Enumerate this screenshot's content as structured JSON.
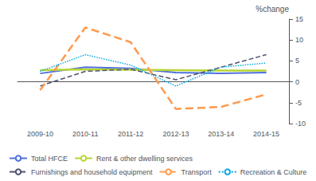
{
  "chart_data": {
    "type": "line",
    "categories": [
      "2009-10",
      "2010-11",
      "2011-12",
      "2012-13",
      "2013-14",
      "2014-15"
    ],
    "series": [
      {
        "name": "Total HFCE",
        "values": [
          2.0,
          3.5,
          3.2,
          2.2,
          2.0,
          2.2
        ],
        "line_style": "solid"
      },
      {
        "name": "Rent & other dwelling services",
        "values": [
          2.8,
          3.0,
          2.9,
          2.8,
          2.7,
          2.7
        ],
        "line_style": "solid"
      },
      {
        "name": "Furnishings and household equipment",
        "values": [
          -1.0,
          2.5,
          3.0,
          0.5,
          3.5,
          6.5
        ],
        "line_style": "dashed"
      },
      {
        "name": "Transport",
        "values": [
          -2.0,
          13.0,
          9.5,
          -6.5,
          -6.0,
          -3.0
        ],
        "line_style": "dashed"
      },
      {
        "name": "Recreation & Culture",
        "values": [
          2.5,
          6.5,
          4.0,
          -1.0,
          3.5,
          4.5
        ],
        "line_style": "dotted"
      }
    ],
    "ylabel": "%change",
    "ylim": [
      -10,
      15
    ],
    "yticks": [
      -10,
      -5,
      0,
      5,
      10,
      15
    ],
    "grid": false,
    "legend": "lower left"
  }
}
